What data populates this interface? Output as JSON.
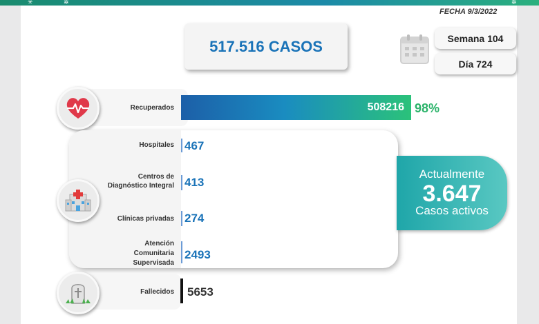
{
  "header": {
    "fecha": "FECHA 9/3/2022"
  },
  "total": {
    "label": "517.516 CASOS"
  },
  "calendar": {
    "icon": "calendar-icon"
  },
  "semana": "Semana 104",
  "dia": "Día 724",
  "recuperados": {
    "label": "Recuperados",
    "value": "508216",
    "percent": "98%",
    "icon": "heart-pulse-icon"
  },
  "hospitalizados": {
    "icon": "hospital-icon",
    "rows": [
      {
        "label": "Hospitales",
        "value": "467"
      },
      {
        "label": "Centros de Diagnóstico Integral",
        "label_line1": "Centros de",
        "label_line2": "Diagnóstico Integral",
        "value": "413"
      },
      {
        "label": "Clínicas privadas",
        "value": "274"
      },
      {
        "label": "Atención Comunitaria Supervisada",
        "label_line1": "Atención",
        "label_line2": "Comunitaria",
        "label_line3": "Supervisada",
        "value": "2493"
      }
    ]
  },
  "activos": {
    "top": "Actualmente",
    "number": "3.647",
    "bottom": "Casos activos"
  },
  "fallecidos": {
    "label": "Fallecidos",
    "value": "5653",
    "icon": "tombstone-icon"
  },
  "colors": {
    "accent_blue": "#1a73b8",
    "accent_green": "#2bb36a",
    "teal": "#1fa6a9"
  }
}
